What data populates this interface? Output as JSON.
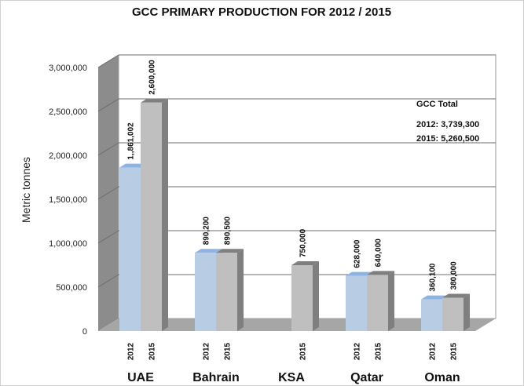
{
  "chart_data": {
    "type": "bar",
    "title": "GCC PRIMARY PRODUCTION FOR 2012 / 2015",
    "ylabel": "Metric tonnes",
    "xlabel": "",
    "ylim": [
      0,
      3000000
    ],
    "yticks": [
      0,
      500000,
      1000000,
      1500000,
      2000000,
      2500000,
      3000000
    ],
    "ytick_labels": [
      "0",
      "500,000",
      "1,000,000",
      "1,500,000",
      "2,000,000",
      "2,500,000",
      "3,000,000"
    ],
    "categories": [
      "UAE",
      "Bahrain",
      "KSA",
      "Qatar",
      "Oman"
    ],
    "series": [
      {
        "name": "2012",
        "values": [
          1861002,
          890200,
          null,
          628000,
          360100
        ],
        "labels": [
          "1,,861,002",
          "890,200",
          "",
          "628,000",
          "360,100"
        ],
        "color": "#b8cce4"
      },
      {
        "name": "2015",
        "values": [
          2600000,
          890500,
          750000,
          640000,
          380000
        ],
        "labels": [
          "2,600,000",
          "890,500",
          "750,000",
          "640,000",
          "380,000"
        ],
        "color": "#bfbfbf"
      }
    ],
    "grid": true,
    "legend": "none",
    "annotation": {
      "heading": "GCC Total",
      "lines": [
        "2012: 3,739,300",
        "2015: 5,260,500"
      ]
    },
    "colors": {
      "wall": "#ffffff",
      "side_wall": "#8c8c8c",
      "floor": "#a6a6a6",
      "grid": "#6e6e6e",
      "side_2012": "#8db3e2",
      "side_2015": "#7f7f7f"
    }
  }
}
